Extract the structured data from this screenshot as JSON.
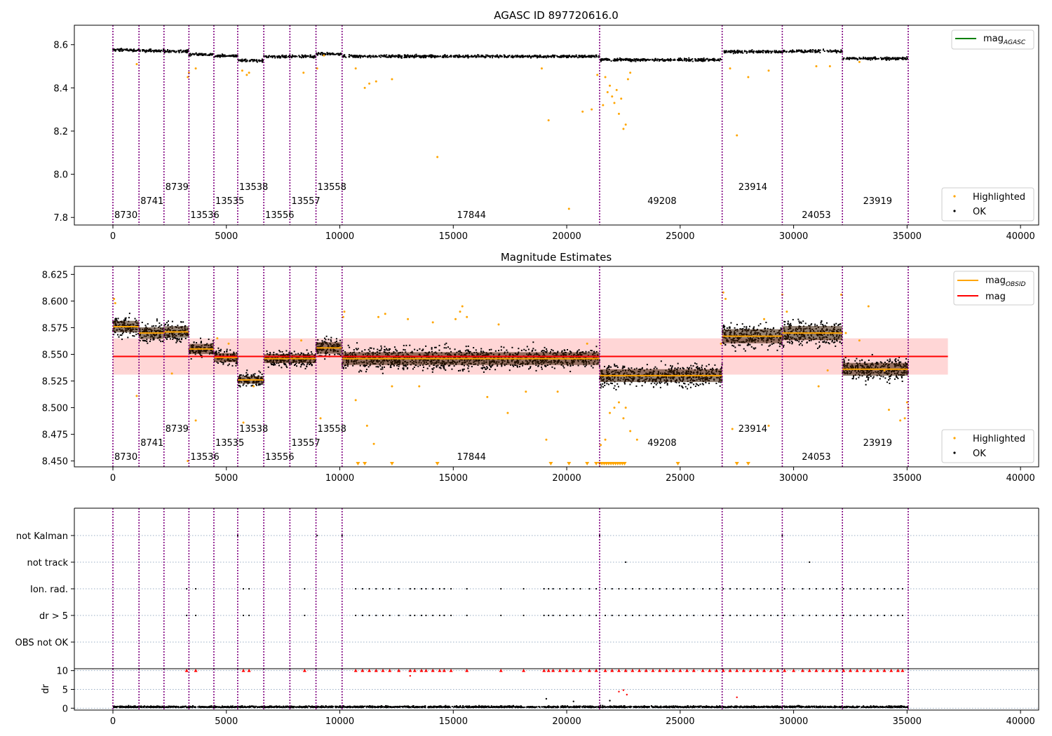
{
  "chart_data": [
    {
      "id": "top",
      "type": "scatter",
      "title": "AGASC ID 897720616.0",
      "xlim": [
        -1700,
        40800
      ],
      "ylim": [
        7.765,
        8.69
      ],
      "xticks": [
        0,
        5000,
        10000,
        15000,
        20000,
        25000,
        30000,
        35000,
        40000
      ],
      "yticks": [
        7.8,
        8.0,
        8.2,
        8.4,
        8.6
      ],
      "ytick_labels": [
        "7.8",
        "8.0",
        "8.2",
        "8.4",
        "8.6"
      ],
      "segments": [
        {
          "start": 0,
          "end": 1150,
          "mean": 8.575
        },
        {
          "start": 1150,
          "end": 2250,
          "mean": 8.572
        },
        {
          "start": 2250,
          "end": 3350,
          "mean": 8.57
        },
        {
          "start": 3350,
          "end": 4450,
          "mean": 8.555
        },
        {
          "start": 4450,
          "end": 5500,
          "mean": 8.548
        },
        {
          "start": 5500,
          "end": 6650,
          "mean": 8.527
        },
        {
          "start": 6650,
          "end": 7800,
          "mean": 8.545
        },
        {
          "start": 7800,
          "end": 8950,
          "mean": 8.545
        },
        {
          "start": 8950,
          "end": 10100,
          "mean": 8.556
        },
        {
          "start": 10100,
          "end": 21450,
          "mean": 8.546
        },
        {
          "start": 21450,
          "end": 26850,
          "mean": 8.53
        },
        {
          "start": 26850,
          "end": 29500,
          "mean": 8.567
        },
        {
          "start": 29500,
          "end": 32150,
          "mean": 8.57
        },
        {
          "start": 32150,
          "end": 35050,
          "mean": 8.536
        }
      ],
      "highlighted_points": [
        [
          1050,
          8.51
        ],
        [
          3300,
          8.45
        ],
        [
          3350,
          8.47
        ],
        [
          3650,
          8.49
        ],
        [
          5700,
          8.48
        ],
        [
          5900,
          8.46
        ],
        [
          6000,
          8.47
        ],
        [
          8400,
          8.47
        ],
        [
          9000,
          8.49
        ],
        [
          9300,
          8.55
        ],
        [
          10700,
          8.49
        ],
        [
          11100,
          8.4
        ],
        [
          11300,
          8.42
        ],
        [
          11600,
          8.43
        ],
        [
          12300,
          8.44
        ],
        [
          14300,
          8.08
        ],
        [
          18900,
          8.49
        ],
        [
          19200,
          8.25
        ],
        [
          20100,
          7.84
        ],
        [
          20700,
          8.29
        ],
        [
          21100,
          8.3
        ],
        [
          21350,
          8.46
        ],
        [
          21600,
          8.32
        ],
        [
          21700,
          8.45
        ],
        [
          21800,
          8.38
        ],
        [
          21900,
          8.41
        ],
        [
          22000,
          8.36
        ],
        [
          22100,
          8.33
        ],
        [
          22200,
          8.39
        ],
        [
          22300,
          8.28
        ],
        [
          22400,
          8.35
        ],
        [
          22500,
          8.21
        ],
        [
          22600,
          8.23
        ],
        [
          22700,
          8.44
        ],
        [
          22800,
          8.47
        ],
        [
          27500,
          8.18
        ],
        [
          27200,
          8.49
        ],
        [
          28000,
          8.45
        ],
        [
          28900,
          8.48
        ],
        [
          31000,
          8.5
        ],
        [
          31600,
          8.5
        ],
        [
          32900,
          8.52
        ]
      ],
      "obsids": [
        {
          "label": "8730",
          "x": 0,
          "row": 0
        },
        {
          "label": "8741",
          "x": 1150,
          "row": 1
        },
        {
          "label": "8739",
          "x": 2250,
          "row": 2
        },
        {
          "label": "13536",
          "x": 3350,
          "row": 0
        },
        {
          "label": "13535",
          "x": 4450,
          "row": 1
        },
        {
          "label": "13538",
          "x": 5500,
          "row": 2
        },
        {
          "label": "13556",
          "x": 6650,
          "row": 0
        },
        {
          "label": "13557",
          "x": 7800,
          "row": 1
        },
        {
          "label": "13558",
          "x": 8950,
          "row": 2
        },
        {
          "label": "17844",
          "x": 15100,
          "row": 0
        },
        {
          "label": "49208",
          "x": 23500,
          "row": 1
        },
        {
          "label": "23914",
          "x": 27500,
          "row": 2
        },
        {
          "label": "24053",
          "x": 30300,
          "row": 0
        },
        {
          "label": "23919",
          "x": 33000,
          "row": 1
        }
      ],
      "legends": [
        {
          "position": "top-right",
          "entries": [
            {
              "kind": "line",
              "color": "#008000",
              "label": "mag",
              "sub": "AGASC"
            }
          ]
        },
        {
          "position": "bottom-right",
          "entries": [
            {
              "kind": "dot",
              "color": "#ffa500",
              "label": "Highlighted"
            },
            {
              "kind": "dot",
              "color": "#000000",
              "label": "OK"
            }
          ]
        }
      ]
    },
    {
      "id": "middle",
      "type": "scatter",
      "title": "Magnitude Estimates",
      "xlim": [
        -1700,
        40800
      ],
      "ylim": [
        8.4445,
        8.6325
      ],
      "xticks": [
        0,
        5000,
        10000,
        15000,
        20000,
        25000,
        30000,
        35000,
        40000
      ],
      "yticks": [
        8.45,
        8.475,
        8.5,
        8.525,
        8.55,
        8.575,
        8.6,
        8.625
      ],
      "ytick_labels": [
        "8.450",
        "8.475",
        "8.500",
        "8.525",
        "8.550",
        "8.575",
        "8.600",
        "8.625"
      ],
      "mag": 8.548,
      "mag_band": [
        8.531,
        8.565
      ],
      "mag_line_x": [
        0,
        36800
      ],
      "segments": [
        {
          "start": 0,
          "end": 1150,
          "mean": 8.576,
          "spread": 0.009
        },
        {
          "start": 1150,
          "end": 2250,
          "mean": 8.57,
          "spread": 0.009
        },
        {
          "start": 2250,
          "end": 3350,
          "mean": 8.571,
          "spread": 0.009
        },
        {
          "start": 3350,
          "end": 4450,
          "mean": 8.555,
          "spread": 0.008
        },
        {
          "start": 4450,
          "end": 5500,
          "mean": 8.547,
          "spread": 0.007
        },
        {
          "start": 5500,
          "end": 6650,
          "mean": 8.526,
          "spread": 0.006
        },
        {
          "start": 6650,
          "end": 7800,
          "mean": 8.546,
          "spread": 0.007
        },
        {
          "start": 7800,
          "end": 8950,
          "mean": 8.546,
          "spread": 0.007
        },
        {
          "start": 8950,
          "end": 10100,
          "mean": 8.556,
          "spread": 0.009
        },
        {
          "start": 10100,
          "end": 21450,
          "mean": 8.546,
          "spread": 0.01
        },
        {
          "start": 21450,
          "end": 26850,
          "mean": 8.53,
          "spread": 0.01
        },
        {
          "start": 26850,
          "end": 29500,
          "mean": 8.567,
          "spread": 0.011
        },
        {
          "start": 29500,
          "end": 32150,
          "mean": 8.57,
          "spread": 0.011
        },
        {
          "start": 32150,
          "end": 35050,
          "mean": 8.536,
          "spread": 0.01
        }
      ],
      "highlighted_points": [
        [
          50,
          8.602
        ],
        [
          100,
          8.598
        ],
        [
          1050,
          8.511
        ],
        [
          2600,
          8.532
        ],
        [
          3300,
          8.45
        ],
        [
          3650,
          8.488
        ],
        [
          4600,
          8.565
        ],
        [
          5100,
          8.56
        ],
        [
          5750,
          8.486
        ],
        [
          6200,
          8.52
        ],
        [
          8300,
          8.563
        ],
        [
          9150,
          8.49
        ],
        [
          10150,
          8.585
        ],
        [
          10200,
          8.59
        ],
        [
          10700,
          8.507
        ],
        [
          11200,
          8.483
        ],
        [
          11500,
          8.466
        ],
        [
          11700,
          8.585
        ],
        [
          12000,
          8.588
        ],
        [
          12300,
          8.52
        ],
        [
          13000,
          8.583
        ],
        [
          13500,
          8.52
        ],
        [
          14100,
          8.58
        ],
        [
          15100,
          8.583
        ],
        [
          15300,
          8.59
        ],
        [
          15400,
          8.595
        ],
        [
          15600,
          8.585
        ],
        [
          16500,
          8.51
        ],
        [
          17000,
          8.578
        ],
        [
          17400,
          8.495
        ],
        [
          18200,
          8.515
        ],
        [
          19100,
          8.47
        ],
        [
          19600,
          8.515
        ],
        [
          20900,
          8.56
        ],
        [
          21500,
          8.465
        ],
        [
          21700,
          8.47
        ],
        [
          21900,
          8.495
        ],
        [
          22100,
          8.5
        ],
        [
          22300,
          8.505
        ],
        [
          22500,
          8.49
        ],
        [
          22600,
          8.5
        ],
        [
          22800,
          8.478
        ],
        [
          23100,
          8.47
        ],
        [
          26800,
          8.56
        ],
        [
          26900,
          8.608
        ],
        [
          27000,
          8.602
        ],
        [
          27300,
          8.48
        ],
        [
          28700,
          8.583
        ],
        [
          28900,
          8.483
        ],
        [
          29500,
          8.606
        ],
        [
          29700,
          8.59
        ],
        [
          31100,
          8.52
        ],
        [
          31500,
          8.535
        ],
        [
          32100,
          8.606
        ],
        [
          32300,
          8.57
        ],
        [
          32900,
          8.563
        ],
        [
          33300,
          8.595
        ],
        [
          34000,
          8.535
        ],
        [
          34200,
          8.498
        ],
        [
          34700,
          8.488
        ],
        [
          34900,
          8.49
        ],
        [
          35000,
          8.505
        ],
        [
          35050,
          8.5
        ]
      ],
      "below_range_x": [
        10800,
        11100,
        12300,
        14300,
        19300,
        20100,
        20900,
        21300,
        21450,
        21550,
        21650,
        21750,
        21850,
        21950,
        22050,
        22150,
        22250,
        22350,
        22450,
        22550,
        24900,
        27500,
        28000
      ],
      "obsids": [
        {
          "label": "8730",
          "x": 0,
          "row": 0
        },
        {
          "label": "8741",
          "x": 1150,
          "row": 1
        },
        {
          "label": "8739",
          "x": 2250,
          "row": 2
        },
        {
          "label": "13536",
          "x": 3350,
          "row": 0
        },
        {
          "label": "13535",
          "x": 4450,
          "row": 1
        },
        {
          "label": "13538",
          "x": 5500,
          "row": 2
        },
        {
          "label": "13556",
          "x": 6650,
          "row": 0
        },
        {
          "label": "13557",
          "x": 7800,
          "row": 1
        },
        {
          "label": "13558",
          "x": 8950,
          "row": 2
        },
        {
          "label": "17844",
          "x": 15100,
          "row": 0
        },
        {
          "label": "49208",
          "x": 23500,
          "row": 1
        },
        {
          "label": "23914",
          "x": 27500,
          "row": 2
        },
        {
          "label": "24053",
          "x": 30300,
          "row": 0
        },
        {
          "label": "23919",
          "x": 33000,
          "row": 1
        }
      ],
      "legends": [
        {
          "position": "top-right",
          "entries": [
            {
              "kind": "line",
              "color": "#ffa500",
              "label": "mag",
              "sub": "OBSID"
            },
            {
              "kind": "line",
              "color": "#ff0000",
              "label": "mag"
            }
          ]
        },
        {
          "position": "bottom-right",
          "entries": [
            {
              "kind": "dot",
              "color": "#ffa500",
              "label": "Highlighted"
            },
            {
              "kind": "dot",
              "color": "#000000",
              "label": "OK"
            }
          ]
        }
      ]
    },
    {
      "id": "flags",
      "type": "scatter",
      "xlim": [
        -1700,
        40800
      ],
      "categories": [
        "OBS not OK",
        "dr > 5",
        "Ion. rad.",
        "not track",
        "not Kalman"
      ],
      "points": {
        "not Kalman": [
          5500,
          9000,
          10100,
          21450,
          29500
        ],
        "not track": [
          22600,
          30700
        ],
        "Ion. rad.": [
          3250,
          3650,
          5750,
          6000,
          8450,
          10700,
          11000,
          11300,
          11600,
          11900,
          12200,
          12600,
          13100,
          13300,
          13600,
          13800,
          14100,
          14400,
          14600,
          14900,
          15600,
          17100,
          18100,
          19000,
          19200,
          19400,
          19700,
          20000,
          20300,
          20600,
          21000,
          21300,
          21700,
          22000,
          22300,
          22600,
          22900,
          23200,
          23500,
          23800,
          24100,
          24400,
          24700,
          25000,
          25300,
          25600,
          26000,
          26300,
          26600,
          26900,
          27200,
          27500,
          27800,
          28100,
          28400,
          28700,
          29000,
          29300,
          29600,
          30000,
          30400,
          30700,
          31000,
          31300,
          31600,
          31900,
          32200,
          32500,
          32800,
          33100,
          33400,
          33700,
          34000,
          34300,
          34600,
          34800
        ],
        "dr > 5": [
          3250,
          3650,
          5750,
          6000,
          8450,
          10700,
          11000,
          11300,
          11600,
          11900,
          12200,
          12600,
          13100,
          13300,
          13600,
          13800,
          14100,
          14400,
          14600,
          14900,
          15600,
          17100,
          18100,
          19000,
          19200,
          19400,
          19700,
          20000,
          20300,
          20600,
          21000,
          21300,
          21700,
          22000,
          22300,
          22600,
          22900,
          23200,
          23500,
          23800,
          24100,
          24400,
          24700,
          25000,
          25300,
          25600,
          26000,
          26300,
          26600,
          26900,
          27200,
          27500,
          27800,
          28100,
          28400,
          28700,
          29000,
          29300,
          29600,
          30000,
          30400,
          30700,
          31000,
          31300,
          31600,
          31900,
          32200,
          32500,
          32800,
          33100,
          33400,
          33700,
          34000,
          34300,
          34600,
          34800
        ],
        "OBS not OK": []
      }
    },
    {
      "id": "dr",
      "type": "scatter",
      "xlim": [
        -1700,
        40800
      ],
      "ylim": [
        -0.5,
        10.5
      ],
      "ylabel": "dr",
      "xticks": [
        0,
        5000,
        10000,
        15000,
        20000,
        25000,
        30000,
        35000,
        40000
      ],
      "yticks": [
        0,
        5,
        10
      ],
      "ytick_labels": [
        "0",
        "5",
        "10"
      ],
      "capped_x": [
        3250,
        3650,
        5750,
        6000,
        8450,
        10700,
        11000,
        11300,
        11600,
        11900,
        12200,
        12600,
        13100,
        13300,
        13600,
        13800,
        14100,
        14400,
        14600,
        14900,
        15600,
        17100,
        18100,
        19000,
        19200,
        19400,
        19700,
        20000,
        20300,
        20600,
        21000,
        21300,
        21700,
        22000,
        22300,
        22600,
        22900,
        23200,
        23500,
        23800,
        24100,
        24400,
        24700,
        25000,
        25300,
        25600,
        26000,
        26300,
        26600,
        26900,
        27200,
        27500,
        27800,
        28100,
        28400,
        28700,
        29000,
        29300,
        29600,
        30000,
        30400,
        30700,
        31000,
        31300,
        31600,
        31900,
        32200,
        32500,
        32800,
        33100,
        33400,
        33700,
        34000,
        34300,
        34600,
        34800
      ],
      "outliers": [
        [
          13100,
          8.6
        ],
        [
          19100,
          2.5
        ],
        [
          20300,
          1.8
        ],
        [
          21900,
          2.0
        ],
        [
          22300,
          4.4
        ],
        [
          22500,
          4.8
        ],
        [
          22650,
          3.6
        ],
        [
          27500,
          2.9
        ]
      ]
    }
  ],
  "obsid_boundaries": [
    0,
    1150,
    2250,
    3350,
    4450,
    5500,
    6650,
    7800,
    8950,
    10100,
    21450,
    26850,
    29500,
    32150,
    35050
  ],
  "colors": {
    "ok": "#000000",
    "highlighted": "#ffa500",
    "mag": "#ff0000",
    "mag_band": "#ffd6d6",
    "mag_obsid": "#ffa500",
    "mag_agasc": "#008000",
    "boundary": "#800080",
    "capped": "#ff0000"
  }
}
